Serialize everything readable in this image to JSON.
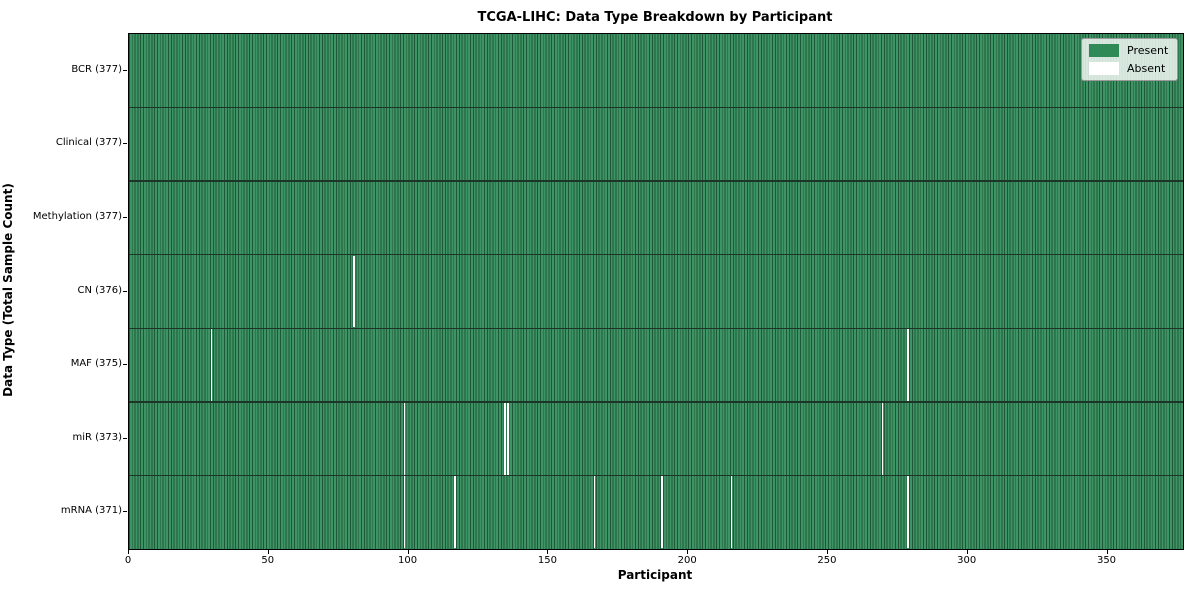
{
  "chart_data": {
    "type": "heatmap",
    "title": "TCGA-LIHC: Data Type Breakdown by Participant",
    "xlabel": "Participant",
    "ylabel": "Data Type (Total Sample Count)",
    "x_ticks": [
      0,
      50,
      100,
      150,
      200,
      250,
      300,
      350
    ],
    "xlim": [
      0,
      377
    ],
    "n_participants": 377,
    "rows": [
      {
        "label": "BCR (377)",
        "data_type": "BCR",
        "present_count": 377,
        "absent_participants": []
      },
      {
        "label": "Clinical (377)",
        "data_type": "Clinical",
        "present_count": 377,
        "absent_participants": []
      },
      {
        "label": "Methylation (377)",
        "data_type": "Methylation",
        "present_count": 377,
        "absent_participants": []
      },
      {
        "label": "CN (376)",
        "data_type": "CN",
        "present_count": 376,
        "absent_participants": [
          80
        ]
      },
      {
        "label": "MAF (375)",
        "data_type": "MAF",
        "present_count": 375,
        "absent_participants": [
          29,
          278
        ]
      },
      {
        "label": "miR (373)",
        "data_type": "miR",
        "present_count": 373,
        "absent_participants": [
          98,
          134,
          135,
          269
        ]
      },
      {
        "label": "mRNA (371)",
        "data_type": "mRNA",
        "present_count": 371,
        "absent_participants": [
          98,
          116,
          166,
          190,
          215,
          278
        ]
      }
    ],
    "legend": [
      {
        "label": "Present",
        "color": "#2f8a58"
      },
      {
        "label": "Absent",
        "color": "#ffffff"
      }
    ],
    "colors": {
      "present_fill": "#3f9465",
      "cell_edge": "#1d5838",
      "row_border": "#1d3526",
      "plot_border": "#000000",
      "absent_fill": "#ffffff"
    },
    "legend_position": "upper right",
    "grid": false
  }
}
